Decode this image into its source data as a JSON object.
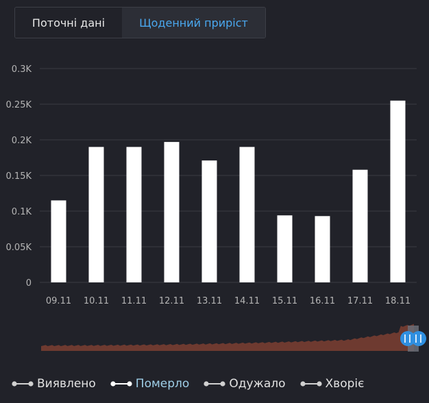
{
  "tabs": {
    "current": "Поточні дані",
    "daily": "Щоденний приріст"
  },
  "chart_data": {
    "type": "bar",
    "categories": [
      "09.11",
      "10.11",
      "11.11",
      "12.11",
      "13.11",
      "14.11",
      "15.11",
      "16.11",
      "17.11",
      "18.11"
    ],
    "values": [
      0.115,
      0.19,
      0.19,
      0.197,
      0.171,
      0.19,
      0.094,
      0.093,
      0.158,
      0.255
    ],
    "series_name": "Померло",
    "unit_suffix": "K",
    "y_ticks": [
      "0",
      "0.05K",
      "0.1K",
      "0.15K",
      "0.2K",
      "0.25K",
      "0.3K"
    ],
    "ylim": [
      0,
      0.3
    ],
    "grid": true,
    "bar_color": "#ffffff",
    "navigator": {
      "series_color": "#6e3a30",
      "handle_color": "#2f8fe0"
    }
  },
  "legend": [
    {
      "label": "Виявлено",
      "active": false
    },
    {
      "label": "Померло",
      "active": true
    },
    {
      "label": "Одужало",
      "active": false
    },
    {
      "label": "Хворіє",
      "active": false
    }
  ],
  "colors": {
    "background": "#212229",
    "grid": "#3a3c44",
    "axis_text": "#b5b5b5",
    "accent": "#4aa8ef"
  }
}
